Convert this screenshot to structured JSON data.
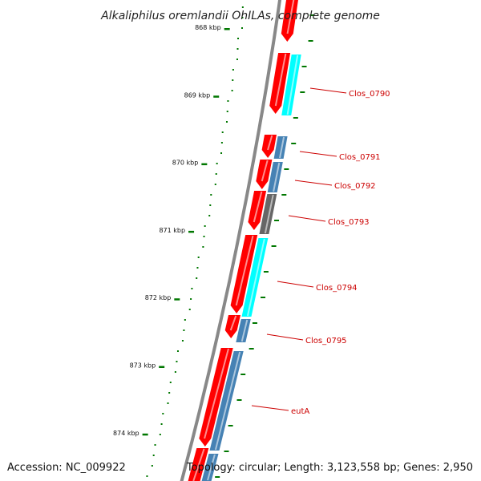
{
  "title": "Alkaliphilus oremlandii OhILAs, complete genome",
  "accession": "Accession: NC_009922",
  "summary": "Topology: circular; Length: 3,123,558 bp; Genes: 2,950",
  "ticks": [
    "868 kbp",
    "869 kbp",
    "870 kbp",
    "871 kbp",
    "872 kbp",
    "873 kbp",
    "874 kbp"
  ],
  "gene_labels": [
    "Clos_0790",
    "Clos_0791",
    "Clos_0792",
    "Clos_0793",
    "Clos_0794",
    "Clos_0795",
    "eutA"
  ],
  "colors": {
    "cds": "#ff0000",
    "cds_highlight": "#ff9a9a",
    "cyan_feature": "#00ffff",
    "blue_feature": "#4682b4",
    "gray_feature": "#666666",
    "backbone": "#888888",
    "gc_skew": "#007700",
    "label": "#cc0000"
  }
}
